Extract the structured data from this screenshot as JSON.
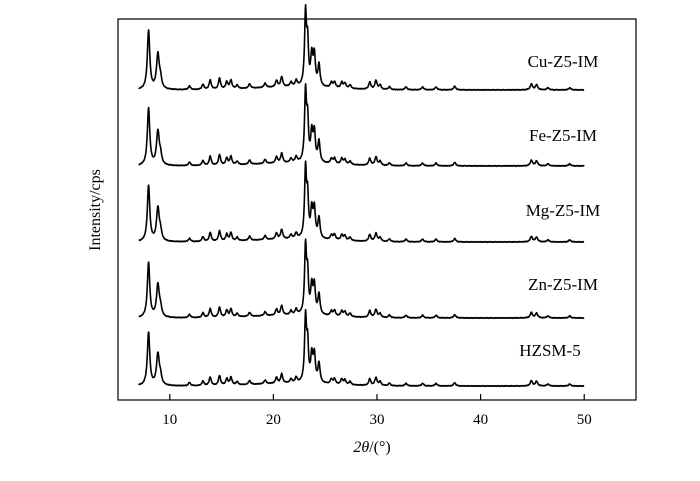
{
  "chart_data": {
    "type": "line",
    "title": "",
    "xlabel_symbol": "2θ",
    "xlabel_unit": "/(°)",
    "ylabel": "Intensity/cps",
    "xlim": [
      5,
      55
    ],
    "xticks": [
      10,
      20,
      30,
      40,
      50
    ],
    "y_ticks_shown": false,
    "grid": false,
    "legend": "inline labels at right of each trace",
    "data_range_x": [
      7,
      50
    ],
    "series": [
      {
        "name": "Cu-Z5-IM",
        "scale": 1.0
      },
      {
        "name": "Fe-Z5-IM",
        "scale": 0.97
      },
      {
        "name": "Mg-Z5-IM",
        "scale": 0.95
      },
      {
        "name": "Zn-Z5-IM",
        "scale": 0.93
      },
      {
        "name": "HZSM-5",
        "scale": 0.9
      }
    ],
    "peaks": [
      {
        "x": 7.95,
        "h": 0.82,
        "w": 0.14
      },
      {
        "x": 8.85,
        "h": 0.48,
        "w": 0.16
      },
      {
        "x": 9.1,
        "h": 0.12,
        "w": 0.14
      },
      {
        "x": 11.9,
        "h": 0.05,
        "w": 0.12
      },
      {
        "x": 13.2,
        "h": 0.07,
        "w": 0.12
      },
      {
        "x": 13.9,
        "h": 0.13,
        "w": 0.12
      },
      {
        "x": 14.8,
        "h": 0.15,
        "w": 0.12
      },
      {
        "x": 15.5,
        "h": 0.1,
        "w": 0.12
      },
      {
        "x": 15.9,
        "h": 0.12,
        "w": 0.12
      },
      {
        "x": 16.5,
        "h": 0.05,
        "w": 0.12
      },
      {
        "x": 17.7,
        "h": 0.06,
        "w": 0.12
      },
      {
        "x": 19.2,
        "h": 0.06,
        "w": 0.12
      },
      {
        "x": 20.3,
        "h": 0.09,
        "w": 0.12
      },
      {
        "x": 20.8,
        "h": 0.14,
        "w": 0.12
      },
      {
        "x": 21.7,
        "h": 0.06,
        "w": 0.12
      },
      {
        "x": 22.2,
        "h": 0.08,
        "w": 0.12
      },
      {
        "x": 23.1,
        "h": 1.0,
        "w": 0.11
      },
      {
        "x": 23.3,
        "h": 0.55,
        "w": 0.1
      },
      {
        "x": 23.7,
        "h": 0.4,
        "w": 0.12
      },
      {
        "x": 23.95,
        "h": 0.42,
        "w": 0.12
      },
      {
        "x": 24.4,
        "h": 0.3,
        "w": 0.12
      },
      {
        "x": 25.6,
        "h": 0.07,
        "w": 0.12
      },
      {
        "x": 25.9,
        "h": 0.08,
        "w": 0.12
      },
      {
        "x": 26.6,
        "h": 0.08,
        "w": 0.12
      },
      {
        "x": 26.9,
        "h": 0.07,
        "w": 0.12
      },
      {
        "x": 27.4,
        "h": 0.05,
        "w": 0.12
      },
      {
        "x": 29.3,
        "h": 0.1,
        "w": 0.12
      },
      {
        "x": 29.9,
        "h": 0.12,
        "w": 0.13
      },
      {
        "x": 30.3,
        "h": 0.06,
        "w": 0.12
      },
      {
        "x": 31.2,
        "h": 0.04,
        "w": 0.12
      },
      {
        "x": 32.8,
        "h": 0.04,
        "w": 0.12
      },
      {
        "x": 34.4,
        "h": 0.04,
        "w": 0.12
      },
      {
        "x": 35.7,
        "h": 0.04,
        "w": 0.12
      },
      {
        "x": 37.5,
        "h": 0.05,
        "w": 0.12
      },
      {
        "x": 44.9,
        "h": 0.08,
        "w": 0.13
      },
      {
        "x": 45.4,
        "h": 0.07,
        "w": 0.13
      },
      {
        "x": 46.5,
        "h": 0.03,
        "w": 0.12
      },
      {
        "x": 48.6,
        "h": 0.03,
        "w": 0.12
      }
    ]
  }
}
